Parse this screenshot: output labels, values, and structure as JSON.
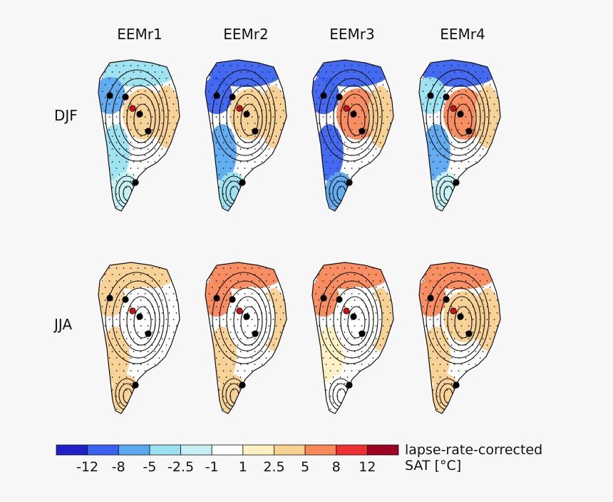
{
  "chart_data": {
    "type": "heatmap",
    "columns": [
      "EEMr1",
      "EEMr2",
      "EEMr3",
      "EEMr4"
    ],
    "rows": [
      "DJF",
      "JJA"
    ],
    "colorbar": {
      "label_line1": "lapse-rate-corrected",
      "label_line2": "SAT [°C]",
      "boundaries": [
        -16,
        -12,
        -8,
        -5,
        -2.5,
        -1,
        1,
        2.5,
        5,
        8,
        12,
        16
      ],
      "tick_labels": [
        "-12",
        "-8",
        "-5",
        "-2.5",
        "-1",
        "1",
        "2.5",
        "5",
        "8",
        "12"
      ],
      "colors": [
        "#2020c8",
        "#3a62f0",
        "#5aa8f0",
        "#9ae0f0",
        "#c4f0f4",
        "#ffffff",
        "#fff0c0",
        "#f8d090",
        "#f88858",
        "#f03030",
        "#a00020"
      ]
    },
    "panels": [
      {
        "column": "EEMr1",
        "row": "DJF",
        "north": -3,
        "northwest": -8,
        "center": 3,
        "east": 2.5,
        "south": -1.5,
        "southwest": -5
      },
      {
        "column": "EEMr2",
        "row": "DJF",
        "north": -9,
        "northwest": -9,
        "center": 4,
        "east": 2.5,
        "south": -5,
        "southwest": -8
      },
      {
        "column": "EEMr3",
        "row": "DJF",
        "north": -10,
        "northwest": -10,
        "center": 5,
        "east": 2.5,
        "south": -7,
        "southwest": -9
      },
      {
        "column": "EEMr4",
        "row": "DJF",
        "north": -12,
        "northwest": -5,
        "center": 6,
        "east": 3,
        "south": -1.5,
        "southwest": -6
      },
      {
        "column": "EEMr1",
        "row": "JJA",
        "north": 3,
        "northwest": 3,
        "center": 0,
        "east": 0,
        "south": 3,
        "southwest": 3
      },
      {
        "column": "EEMr2",
        "row": "JJA",
        "north": 6,
        "northwest": 6,
        "center": 0,
        "east": 2.5,
        "south": 3,
        "southwest": 3
      },
      {
        "column": "EEMr3",
        "row": "JJA",
        "north": 6,
        "northwest": 6,
        "center": 0,
        "east": 2.5,
        "south": 0,
        "southwest": 1.5
      },
      {
        "column": "EEMr4",
        "row": "JJA",
        "north": 5,
        "northwest": 6,
        "center": 3,
        "east": 3,
        "south": 3,
        "southwest": 3
      }
    ]
  }
}
